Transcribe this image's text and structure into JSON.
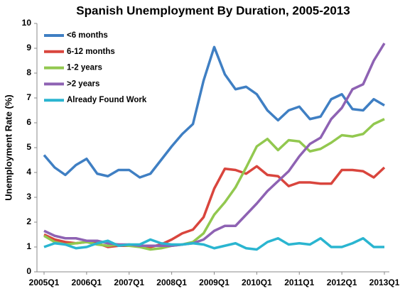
{
  "chart_data": {
    "type": "line",
    "title": "Spanish Unemployment By Duration, 2005-2013",
    "y_label": "Unemployment Rate (%)",
    "categories": [
      "2005Q1",
      null,
      null,
      null,
      "2006Q1",
      null,
      null,
      null,
      "2007Q1",
      null,
      null,
      null,
      "2008Q1",
      null,
      null,
      null,
      "2009Q1",
      null,
      null,
      null,
      "2010Q1",
      null,
      null,
      null,
      "2011Q1",
      null,
      null,
      null,
      "2012Q1",
      null,
      null,
      null,
      "2013Q1"
    ],
    "ylim": [
      0,
      10
    ],
    "yticks": [
      0,
      1,
      2,
      3,
      4,
      5,
      6,
      7,
      8,
      9,
      10
    ],
    "grid": false,
    "legend": "upper left",
    "series": [
      {
        "name": "<6 months",
        "color": "#3f7fc3",
        "values": [
          4.7,
          4.2,
          3.9,
          4.3,
          4.55,
          3.95,
          3.85,
          4.1,
          4.1,
          3.8,
          3.95,
          4.5,
          5.05,
          5.55,
          5.95,
          7.7,
          9.05,
          7.95,
          7.35,
          7.45,
          7.15,
          6.5,
          6.1,
          6.5,
          6.65,
          6.15,
          6.25,
          6.95,
          7.15,
          6.55,
          6.5,
          6.95,
          6.7
        ]
      },
      {
        "name": "6-12 months",
        "color": "#d9453d",
        "values": [
          1.5,
          1.3,
          1.2,
          1.15,
          1.2,
          1.15,
          1.0,
          1.05,
          1.05,
          1.05,
          1.0,
          1.1,
          1.3,
          1.55,
          1.7,
          2.2,
          3.35,
          4.15,
          4.1,
          3.95,
          4.25,
          3.9,
          3.85,
          3.45,
          3.6,
          3.6,
          3.55,
          3.55,
          4.1,
          4.1,
          4.05,
          3.8,
          4.2
        ]
      },
      {
        "name": "1-2 years",
        "color": "#92c84f",
        "values": [
          1.45,
          1.2,
          1.1,
          1.15,
          1.2,
          1.1,
          1.05,
          1.1,
          1.05,
          1.0,
          0.9,
          0.95,
          1.05,
          1.1,
          1.2,
          1.55,
          2.3,
          2.8,
          3.4,
          4.2,
          5.05,
          5.35,
          4.9,
          5.3,
          5.25,
          4.85,
          4.95,
          5.2,
          5.5,
          5.45,
          5.55,
          5.95,
          6.15
        ]
      },
      {
        "name": ">2 years",
        "color": "#8e62b3",
        "values": [
          1.65,
          1.45,
          1.35,
          1.35,
          1.25,
          1.25,
          1.15,
          1.1,
          1.1,
          1.05,
          1.05,
          1.05,
          1.05,
          1.1,
          1.15,
          1.3,
          1.65,
          1.85,
          1.85,
          2.3,
          2.75,
          3.25,
          3.65,
          4.05,
          4.65,
          5.15,
          5.4,
          6.15,
          6.6,
          7.35,
          7.55,
          8.5,
          9.2
        ]
      },
      {
        "name": "Already Found Work",
        "color": "#2ab5d0",
        "values": [
          1.0,
          1.15,
          1.1,
          0.95,
          1.0,
          1.15,
          1.25,
          1.05,
          1.1,
          1.1,
          1.3,
          1.15,
          1.1,
          1.1,
          1.15,
          1.1,
          0.95,
          1.05,
          1.15,
          0.95,
          0.9,
          1.2,
          1.35,
          1.1,
          1.15,
          1.1,
          1.35,
          1.0,
          1.0,
          1.15,
          1.35,
          1.0,
          1.0
        ]
      }
    ]
  }
}
